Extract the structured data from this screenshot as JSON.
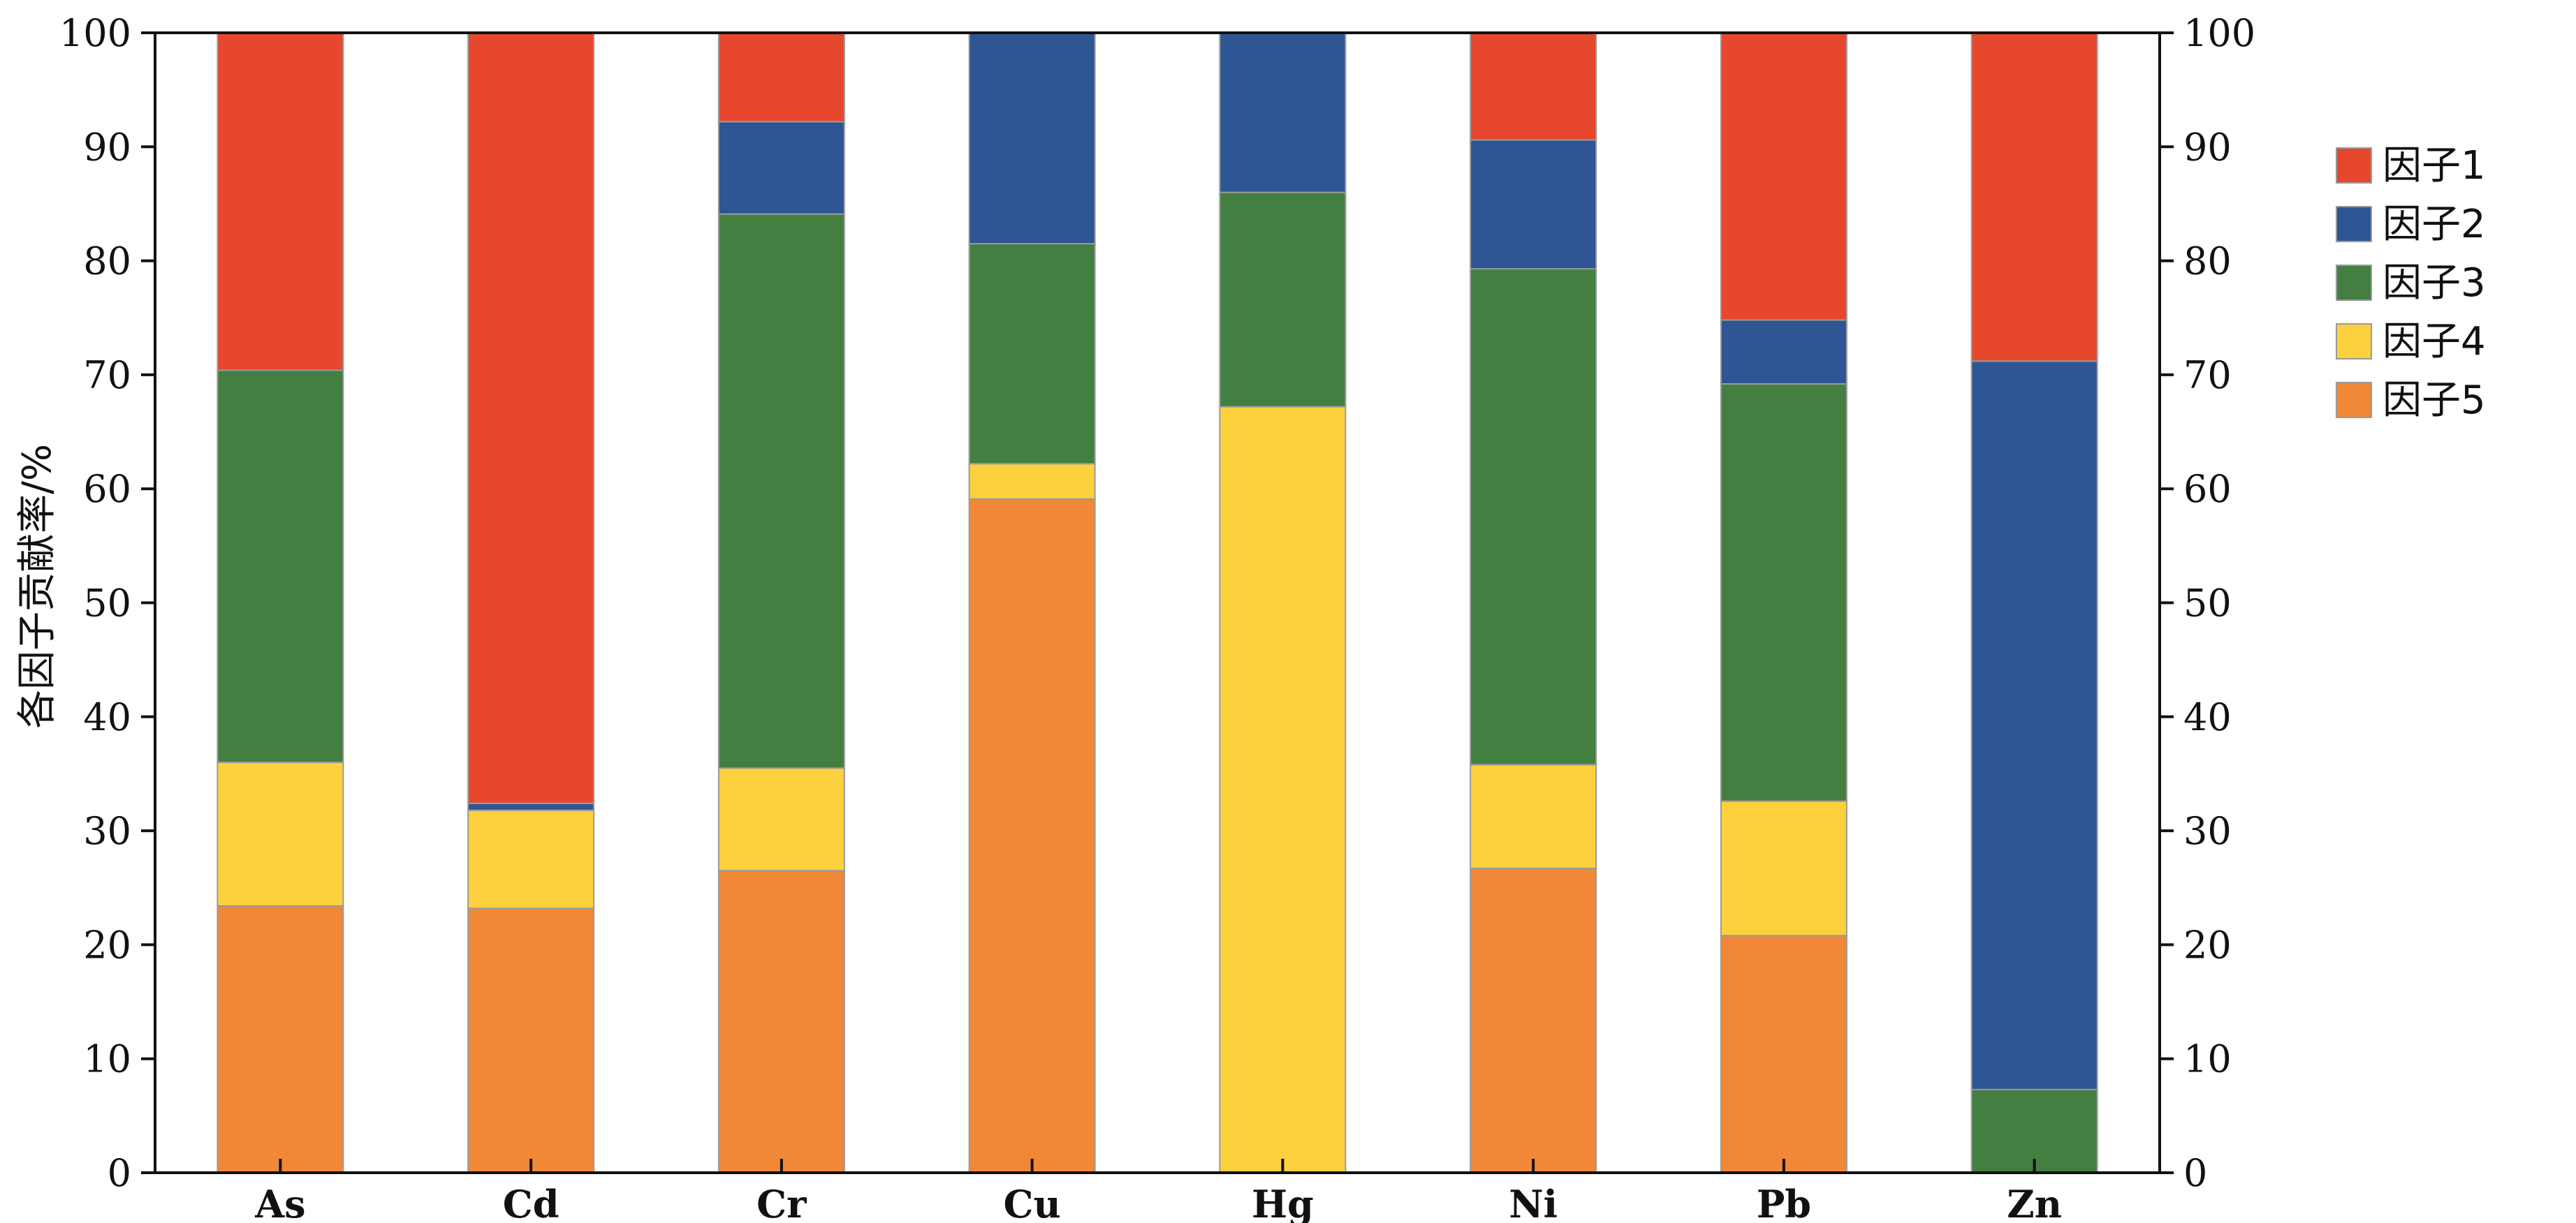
{
  "chart_data": {
    "type": "bar",
    "stacked": true,
    "categories": [
      "As",
      "Cd",
      "Cr",
      "Cu",
      "Hg",
      "Ni",
      "Pb",
      "Zn"
    ],
    "ylabel": "各因子贡献率/%",
    "ylim": [
      0,
      100
    ],
    "yticks": [
      0,
      10,
      20,
      30,
      40,
      50,
      60,
      70,
      80,
      90,
      100
    ],
    "right_axis": true,
    "grid": false,
    "legend_position": "right",
    "stack_order_bottom_to_top": [
      "因子5",
      "因子4",
      "因子3",
      "因子2",
      "因子1"
    ],
    "series": [
      {
        "name": "因子1",
        "color": "#E6472D",
        "values": [
          29.6,
          67.6,
          7.8,
          0.0,
          0.0,
          9.4,
          25.2,
          28.8
        ]
      },
      {
        "name": "因子2",
        "color": "#2E5594",
        "values": [
          0.0,
          0.6,
          8.1,
          18.5,
          14.0,
          11.3,
          5.6,
          63.9
        ]
      },
      {
        "name": "因子3",
        "color": "#427F41",
        "values": [
          34.4,
          0.0,
          48.6,
          19.3,
          18.8,
          43.5,
          36.6,
          7.3
        ]
      },
      {
        "name": "因子4",
        "color": "#FDD03E",
        "values": [
          12.6,
          8.6,
          9.0,
          3.1,
          67.2,
          9.1,
          11.8,
          0.0
        ]
      },
      {
        "name": "因子5",
        "color": "#F08838",
        "values": [
          23.4,
          23.2,
          26.5,
          59.1,
          0.0,
          26.7,
          20.8,
          0.0
        ]
      }
    ]
  }
}
